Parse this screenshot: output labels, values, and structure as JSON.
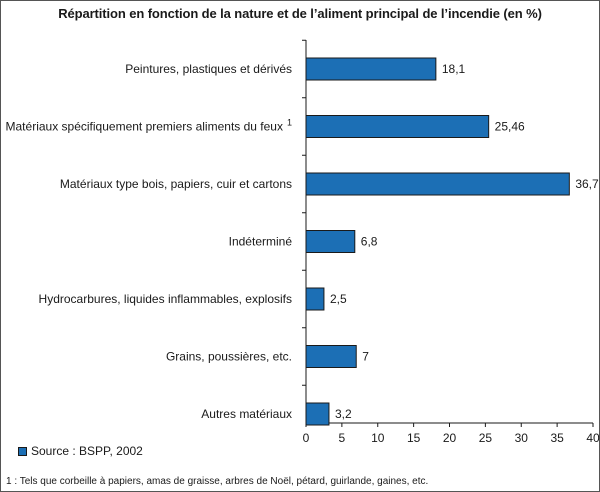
{
  "colors": {
    "bar_fill": "#1c6fb5",
    "bar_stroke": "#1a1a1a",
    "axis": "#1a1a1a"
  },
  "legend": {
    "label": "Source : BSPP, 2002"
  },
  "footnote": "1 : Tels que corbeille à papiers, amas de graisse, arbres de Noël, pétard, guirlande, gaines, etc.",
  "chart_data": {
    "type": "bar",
    "orientation": "horizontal",
    "title": "Répartition en fonction de la nature et de l’aliment principal de l’incendie (en %)",
    "xlabel": "",
    "ylabel": "",
    "xlim": [
      0,
      40
    ],
    "xticks": [
      0,
      5,
      10,
      15,
      20,
      25,
      30,
      35,
      40
    ],
    "grid": false,
    "legend_position": "bottom-left",
    "categories": [
      {
        "label": "Peintures, plastiques et dérivés",
        "superscript": ""
      },
      {
        "label": "Matériaux spécifiquement premiers aliments du feux",
        "superscript": "1"
      },
      {
        "label": "Matériaux type bois, papiers, cuir et cartons",
        "superscript": ""
      },
      {
        "label": "Indéterminé",
        "superscript": ""
      },
      {
        "label": "Hydrocarbures, liquides inflammables, explosifs",
        "superscript": ""
      },
      {
        "label": "Grains, poussières, etc.",
        "superscript": ""
      },
      {
        "label": "Autres matériaux",
        "superscript": ""
      }
    ],
    "values": [
      18.1,
      25.46,
      36.7,
      6.8,
      2.5,
      7,
      3.2
    ],
    "value_labels": [
      "18,1",
      "25,46",
      "36,7",
      "6,8",
      "2,5",
      "7",
      "3,2"
    ]
  }
}
